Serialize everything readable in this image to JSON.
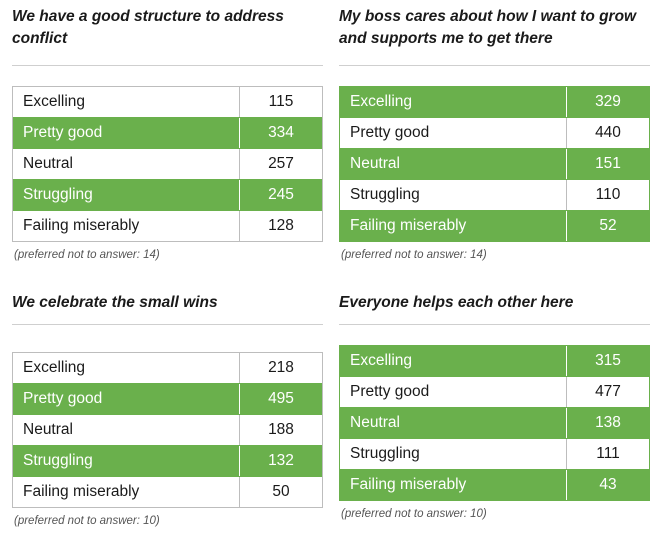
{
  "chart_data": [
    {
      "type": "table",
      "title": "We have a good structure to address conflict",
      "rows": [
        {
          "label": "Excelling",
          "value": 115
        },
        {
          "label": "Pretty good",
          "value": 334
        },
        {
          "label": "Neutral",
          "value": 257
        },
        {
          "label": "Struggling",
          "value": 245
        },
        {
          "label": "Failing miserably",
          "value": 128
        }
      ],
      "note": "(preferred not to answer: 14)"
    },
    {
      "type": "table",
      "title": "My boss cares about how I want to grow and supports me to get there",
      "rows": [
        {
          "label": "Excelling",
          "value": 329
        },
        {
          "label": "Pretty good",
          "value": 440
        },
        {
          "label": "Neutral",
          "value": 151
        },
        {
          "label": "Struggling",
          "value": 110
        },
        {
          "label": "Failing miserably",
          "value": 52
        }
      ],
      "note": "(preferred not to answer: 14)"
    },
    {
      "type": "table",
      "title": "We celebrate the small wins",
      "rows": [
        {
          "label": "Excelling",
          "value": 218
        },
        {
          "label": "Pretty good",
          "value": 495
        },
        {
          "label": "Neutral",
          "value": 188
        },
        {
          "label": "Struggling",
          "value": 132
        },
        {
          "label": "Failing miserably",
          "value": 50
        }
      ],
      "note": "(preferred not to answer: 10)"
    },
    {
      "type": "table",
      "title": "Everyone helps each other here",
      "rows": [
        {
          "label": "Excelling",
          "value": 315
        },
        {
          "label": "Pretty good",
          "value": 477
        },
        {
          "label": "Neutral",
          "value": 138
        },
        {
          "label": "Struggling",
          "value": 111
        },
        {
          "label": "Failing miserably",
          "value": 43
        }
      ],
      "note": "(preferred not to answer: 10)"
    }
  ],
  "colors": {
    "highlight": "#6ab04c",
    "border": "#bdbdbd",
    "text": "#1a1a1a"
  }
}
